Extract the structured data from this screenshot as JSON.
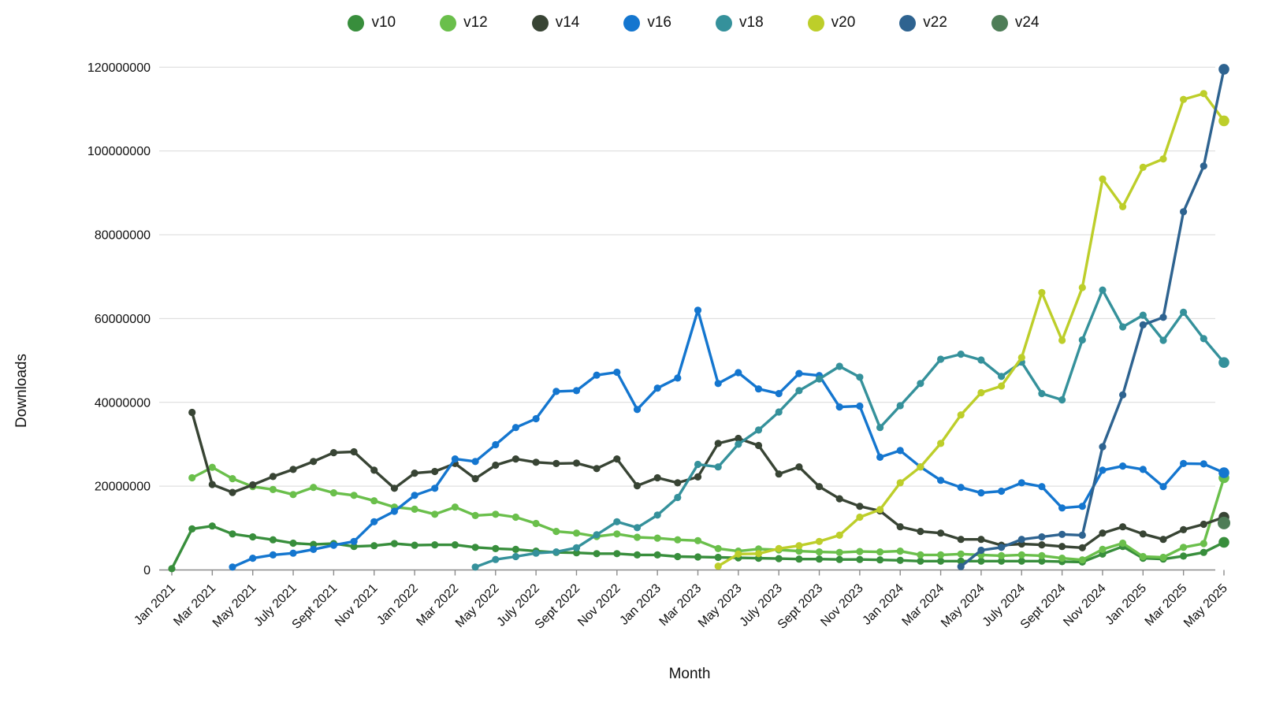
{
  "legend": {
    "items": [
      {
        "label": "v10",
        "color": "#388e3c"
      },
      {
        "label": "v12",
        "color": "#6abf4b"
      },
      {
        "label": "v14",
        "color": "#384434"
      },
      {
        "label": "v16",
        "color": "#1476cf"
      },
      {
        "label": "v18",
        "color": "#35919b"
      },
      {
        "label": "v20",
        "color": "#bdce2a"
      },
      {
        "label": "v22",
        "color": "#2e6390"
      },
      {
        "label": "v24",
        "color": "#4e7d57"
      }
    ]
  },
  "axes": {
    "y_ticks": [
      0,
      20000000,
      40000000,
      60000000,
      80000000,
      100000000,
      120000000
    ],
    "x_tick_labels": [
      "Jan 2021",
      "Mar 2021",
      "May 2021",
      "July 2021",
      "Sept 2021",
      "Nov 2021",
      "Jan 2022",
      "Mar 2022",
      "May 2022",
      "July 2022",
      "Sept 2022",
      "Nov 2022",
      "Jan 2023",
      "Mar 2023",
      "May 2023",
      "July 2023",
      "Sept 2023",
      "Nov 2023",
      "Jan 2024",
      "Mar 2024",
      "May 2024",
      "July 2024",
      "Sept 2024",
      "Nov 2024",
      "Jan 2025",
      "Mar 2025",
      "May 2025"
    ]
  },
  "chart_data": {
    "type": "line",
    "title": "",
    "xlabel": "Month",
    "ylabel": "Downloads",
    "ylim": [
      0,
      120000000
    ],
    "grid": true,
    "legend_position": "top",
    "x": [
      "Jan 2021",
      "Feb 2021",
      "Mar 2021",
      "Apr 2021",
      "May 2021",
      "Jun 2021",
      "July 2021",
      "Aug 2021",
      "Sept 2021",
      "Oct 2021",
      "Nov 2021",
      "Dec 2021",
      "Jan 2022",
      "Feb 2022",
      "Mar 2022",
      "Apr 2022",
      "May 2022",
      "Jun 2022",
      "July 2022",
      "Aug 2022",
      "Sept 2022",
      "Oct 2022",
      "Nov 2022",
      "Dec 2022",
      "Jan 2023",
      "Feb 2023",
      "Mar 2023",
      "Apr 2023",
      "May 2023",
      "Jun 2023",
      "July 2023",
      "Aug 2023",
      "Sept 2023",
      "Oct 2023",
      "Nov 2023",
      "Dec 2023",
      "Jan 2024",
      "Feb 2024",
      "Mar 2024",
      "Apr 2024",
      "May 2024",
      "Jun 2024",
      "July 2024",
      "Aug 2024",
      "Sept 2024",
      "Oct 2024",
      "Nov 2024",
      "Dec 2024",
      "Jan 2025",
      "Feb 2025",
      "Mar 2025",
      "Apr 2025",
      "May 2025"
    ],
    "series": [
      {
        "name": "v10",
        "color": "#388e3c",
        "values": [
          300000,
          9800000,
          10500000,
          8600000,
          7900000,
          7200000,
          6400000,
          6100000,
          6300000,
          5600000,
          5800000,
          6300000,
          5900000,
          6000000,
          6000000,
          5400000,
          5100000,
          4900000,
          4500000,
          4200000,
          4100000,
          3900000,
          3900000,
          3600000,
          3600000,
          3200000,
          3100000,
          3000000,
          2900000,
          2800000,
          2700000,
          2600000,
          2600000,
          2500000,
          2500000,
          2400000,
          2300000,
          2100000,
          2100000,
          2100000,
          2100000,
          2100000,
          2100000,
          2100000,
          2000000,
          1900000,
          3800000,
          5600000,
          2800000,
          2600000,
          3300000,
          4200000,
          6600000
        ]
      },
      {
        "name": "v12",
        "color": "#6abf4b",
        "values": [
          null,
          22000000,
          24500000,
          21800000,
          19900000,
          19200000,
          18000000,
          19700000,
          18400000,
          17800000,
          16500000,
          15000000,
          14500000,
          13300000,
          15000000,
          13000000,
          13300000,
          12600000,
          11100000,
          9200000,
          8800000,
          8000000,
          8600000,
          7800000,
          7600000,
          7200000,
          7000000,
          5100000,
          4500000,
          5000000,
          4800000,
          4500000,
          4300000,
          4200000,
          4400000,
          4300000,
          4500000,
          3600000,
          3600000,
          3800000,
          3600000,
          3400000,
          3600000,
          3400000,
          2800000,
          2400000,
          4900000,
          6400000,
          3200000,
          3000000,
          5400000,
          6300000,
          22000000
        ]
      },
      {
        "name": "v14",
        "color": "#384434",
        "values": [
          null,
          37600000,
          20400000,
          18500000,
          20300000,
          22300000,
          24000000,
          25900000,
          28000000,
          28200000,
          23800000,
          19500000,
          23100000,
          23500000,
          25400000,
          21800000,
          25000000,
          26500000,
          25700000,
          25400000,
          25500000,
          24200000,
          26500000,
          20100000,
          22000000,
          20800000,
          22200000,
          30200000,
          31400000,
          29700000,
          22900000,
          24600000,
          19900000,
          17000000,
          15200000,
          14100000,
          10300000,
          9200000,
          8800000,
          7300000,
          7300000,
          5900000,
          6200000,
          6000000,
          5600000,
          5300000,
          8800000,
          10300000,
          8600000,
          7300000,
          9600000,
          10900000,
          12600000
        ]
      },
      {
        "name": "v16",
        "color": "#1476cf",
        "values": [
          null,
          null,
          null,
          700000,
          2800000,
          3600000,
          4000000,
          4900000,
          5900000,
          6800000,
          11500000,
          14000000,
          17800000,
          19500000,
          26500000,
          25900000,
          29900000,
          34000000,
          36100000,
          42600000,
          42800000,
          46500000,
          47200000,
          38300000,
          43400000,
          45800000,
          62000000,
          44500000,
          47100000,
          43200000,
          42100000,
          46900000,
          46400000,
          38900000,
          39100000,
          26900000,
          28500000,
          24600000,
          21400000,
          19700000,
          18400000,
          18800000,
          20800000,
          19900000,
          14800000,
          15200000,
          23800000,
          24800000,
          24000000,
          19900000,
          25400000,
          25300000,
          23200000
        ]
      },
      {
        "name": "v18",
        "color": "#35919b",
        "values": [
          null,
          null,
          null,
          null,
          null,
          null,
          null,
          null,
          null,
          null,
          null,
          null,
          null,
          null,
          null,
          700000,
          2500000,
          3200000,
          4000000,
          4300000,
          5300000,
          8400000,
          11500000,
          10100000,
          13100000,
          17300000,
          25200000,
          24600000,
          30000000,
          33400000,
          37700000,
          42800000,
          45600000,
          48600000,
          46000000,
          34000000,
          39200000,
          44500000,
          50300000,
          51500000,
          50100000,
          46200000,
          49600000,
          42100000,
          40600000,
          54900000,
          66800000,
          58000000,
          60800000,
          54800000,
          61500000,
          55200000,
          49500000
        ]
      },
      {
        "name": "v20",
        "color": "#bdce2a",
        "values": [
          null,
          null,
          null,
          null,
          null,
          null,
          null,
          null,
          null,
          null,
          null,
          null,
          null,
          null,
          null,
          null,
          null,
          null,
          null,
          null,
          null,
          null,
          null,
          null,
          null,
          null,
          null,
          900000,
          3800000,
          3900000,
          5100000,
          5800000,
          6800000,
          8300000,
          12600000,
          14400000,
          20800000,
          24600000,
          30200000,
          37000000,
          42300000,
          43900000,
          50700000,
          66200000,
          54800000,
          67400000,
          93300000,
          86700000,
          96100000,
          98100000,
          112300000,
          113700000,
          107200000
        ]
      },
      {
        "name": "v22",
        "color": "#2e6390",
        "values": [
          null,
          null,
          null,
          null,
          null,
          null,
          null,
          null,
          null,
          null,
          null,
          null,
          null,
          null,
          null,
          null,
          null,
          null,
          null,
          null,
          null,
          null,
          null,
          null,
          null,
          null,
          null,
          null,
          null,
          null,
          null,
          null,
          null,
          null,
          null,
          null,
          null,
          null,
          null,
          800000,
          4700000,
          5400000,
          7300000,
          7900000,
          8500000,
          8300000,
          29400000,
          41800000,
          58500000,
          60300000,
          85500000,
          96400000,
          119500000
        ]
      },
      {
        "name": "v24",
        "color": "#4e7d57",
        "values": [
          null,
          null,
          null,
          null,
          null,
          null,
          null,
          null,
          null,
          null,
          null,
          null,
          null,
          null,
          null,
          null,
          null,
          null,
          null,
          null,
          null,
          null,
          null,
          null,
          null,
          null,
          null,
          null,
          null,
          null,
          null,
          null,
          null,
          null,
          null,
          null,
          null,
          null,
          null,
          null,
          null,
          null,
          null,
          null,
          null,
          null,
          null,
          null,
          null,
          null,
          null,
          null,
          11200000
        ]
      }
    ]
  }
}
